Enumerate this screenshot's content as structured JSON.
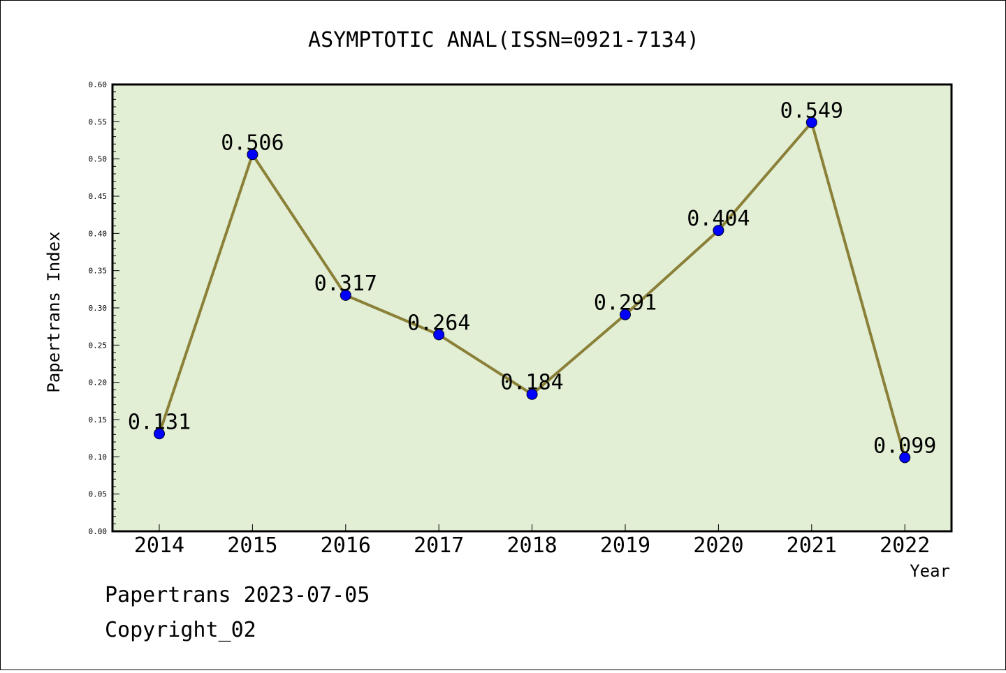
{
  "chart_data": {
    "type": "line",
    "title": "ASYMPTOTIC ANAL(ISSN=0921-7134)",
    "xlabel": "Year",
    "ylabel": "Papertrans Index",
    "categories": [
      "2014",
      "2015",
      "2016",
      "2017",
      "2018",
      "2019",
      "2020",
      "2021",
      "2022"
    ],
    "values": [
      0.131,
      0.506,
      0.317,
      0.264,
      0.184,
      0.291,
      0.404,
      0.549,
      0.099
    ],
    "data_labels": [
      "0.131",
      "0.506",
      "0.317",
      "0.264",
      "0.184",
      "0.291",
      "0.404",
      "0.549",
      "0.099"
    ],
    "ylim": [
      0,
      0.6
    ],
    "yticks": [
      "0.00",
      "0.05",
      "0.10",
      "0.15",
      "0.20",
      "0.25",
      "0.30",
      "0.35",
      "0.40",
      "0.45",
      "0.50",
      "0.55",
      "0.60"
    ],
    "grid": false,
    "legend": "none",
    "colors": {
      "plot_background": "#e2efd5",
      "line": "#8b8038",
      "marker": "#0000ff"
    }
  },
  "footer": {
    "date_line": "Papertrans 2023-07-05",
    "copyright_line": "Copyright_02"
  }
}
